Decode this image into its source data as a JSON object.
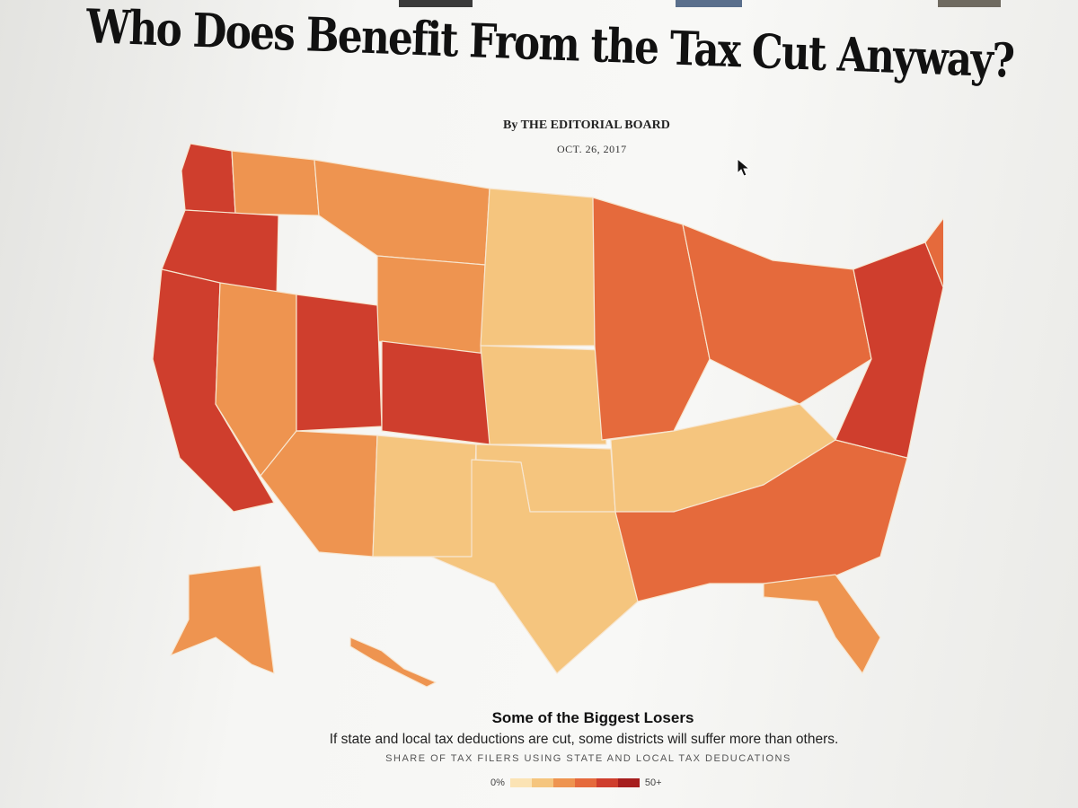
{
  "article": {
    "headline": "Who Does Benefit From the Tax Cut Anyway?",
    "byline": "By THE EDITORIAL BOARD",
    "date": "OCT. 26, 2017"
  },
  "map": {
    "subtitle": "Some of the Biggest Losers",
    "description": "If state and local tax deductions are cut, some districts will suffer more than others.",
    "legend_title": "SHARE OF TAX FILERS USING STATE AND LOCAL TAX DEDUCATIONS",
    "legend_min": "0%",
    "legend_max": "50+",
    "scale_colors": [
      "#fbe3b4",
      "#f5c57e",
      "#ee9450",
      "#e56a3c",
      "#cf3e2d",
      "#a61e1e"
    ],
    "region_colors": {
      "wa_west": "#cf3e2d",
      "oregon": "#cf3e2d",
      "california": "#cf3e2d",
      "nevada": "#ee9450",
      "idaho": "#ee9450",
      "montana": "#ee9450",
      "wyoming": "#ee9450",
      "utah": "#cf3e2d",
      "colorado": "#cf3e2d",
      "arizona": "#ee9450",
      "new_mexico": "#f5c57e",
      "dakotas": "#f5c57e",
      "nebraska_kansas": "#f5c57e",
      "texas": "#f5c57e",
      "oklahoma": "#f5c57e",
      "midwest": "#e56a3c",
      "great_lakes": "#e56a3c",
      "mississippi_valley": "#f5c57e",
      "southeast": "#e56a3c",
      "florida": "#ee9450",
      "northeast": "#cf3e2d",
      "maine": "#e56a3c",
      "alaska": "#ee9450",
      "hawaii": "#ee9450"
    }
  }
}
